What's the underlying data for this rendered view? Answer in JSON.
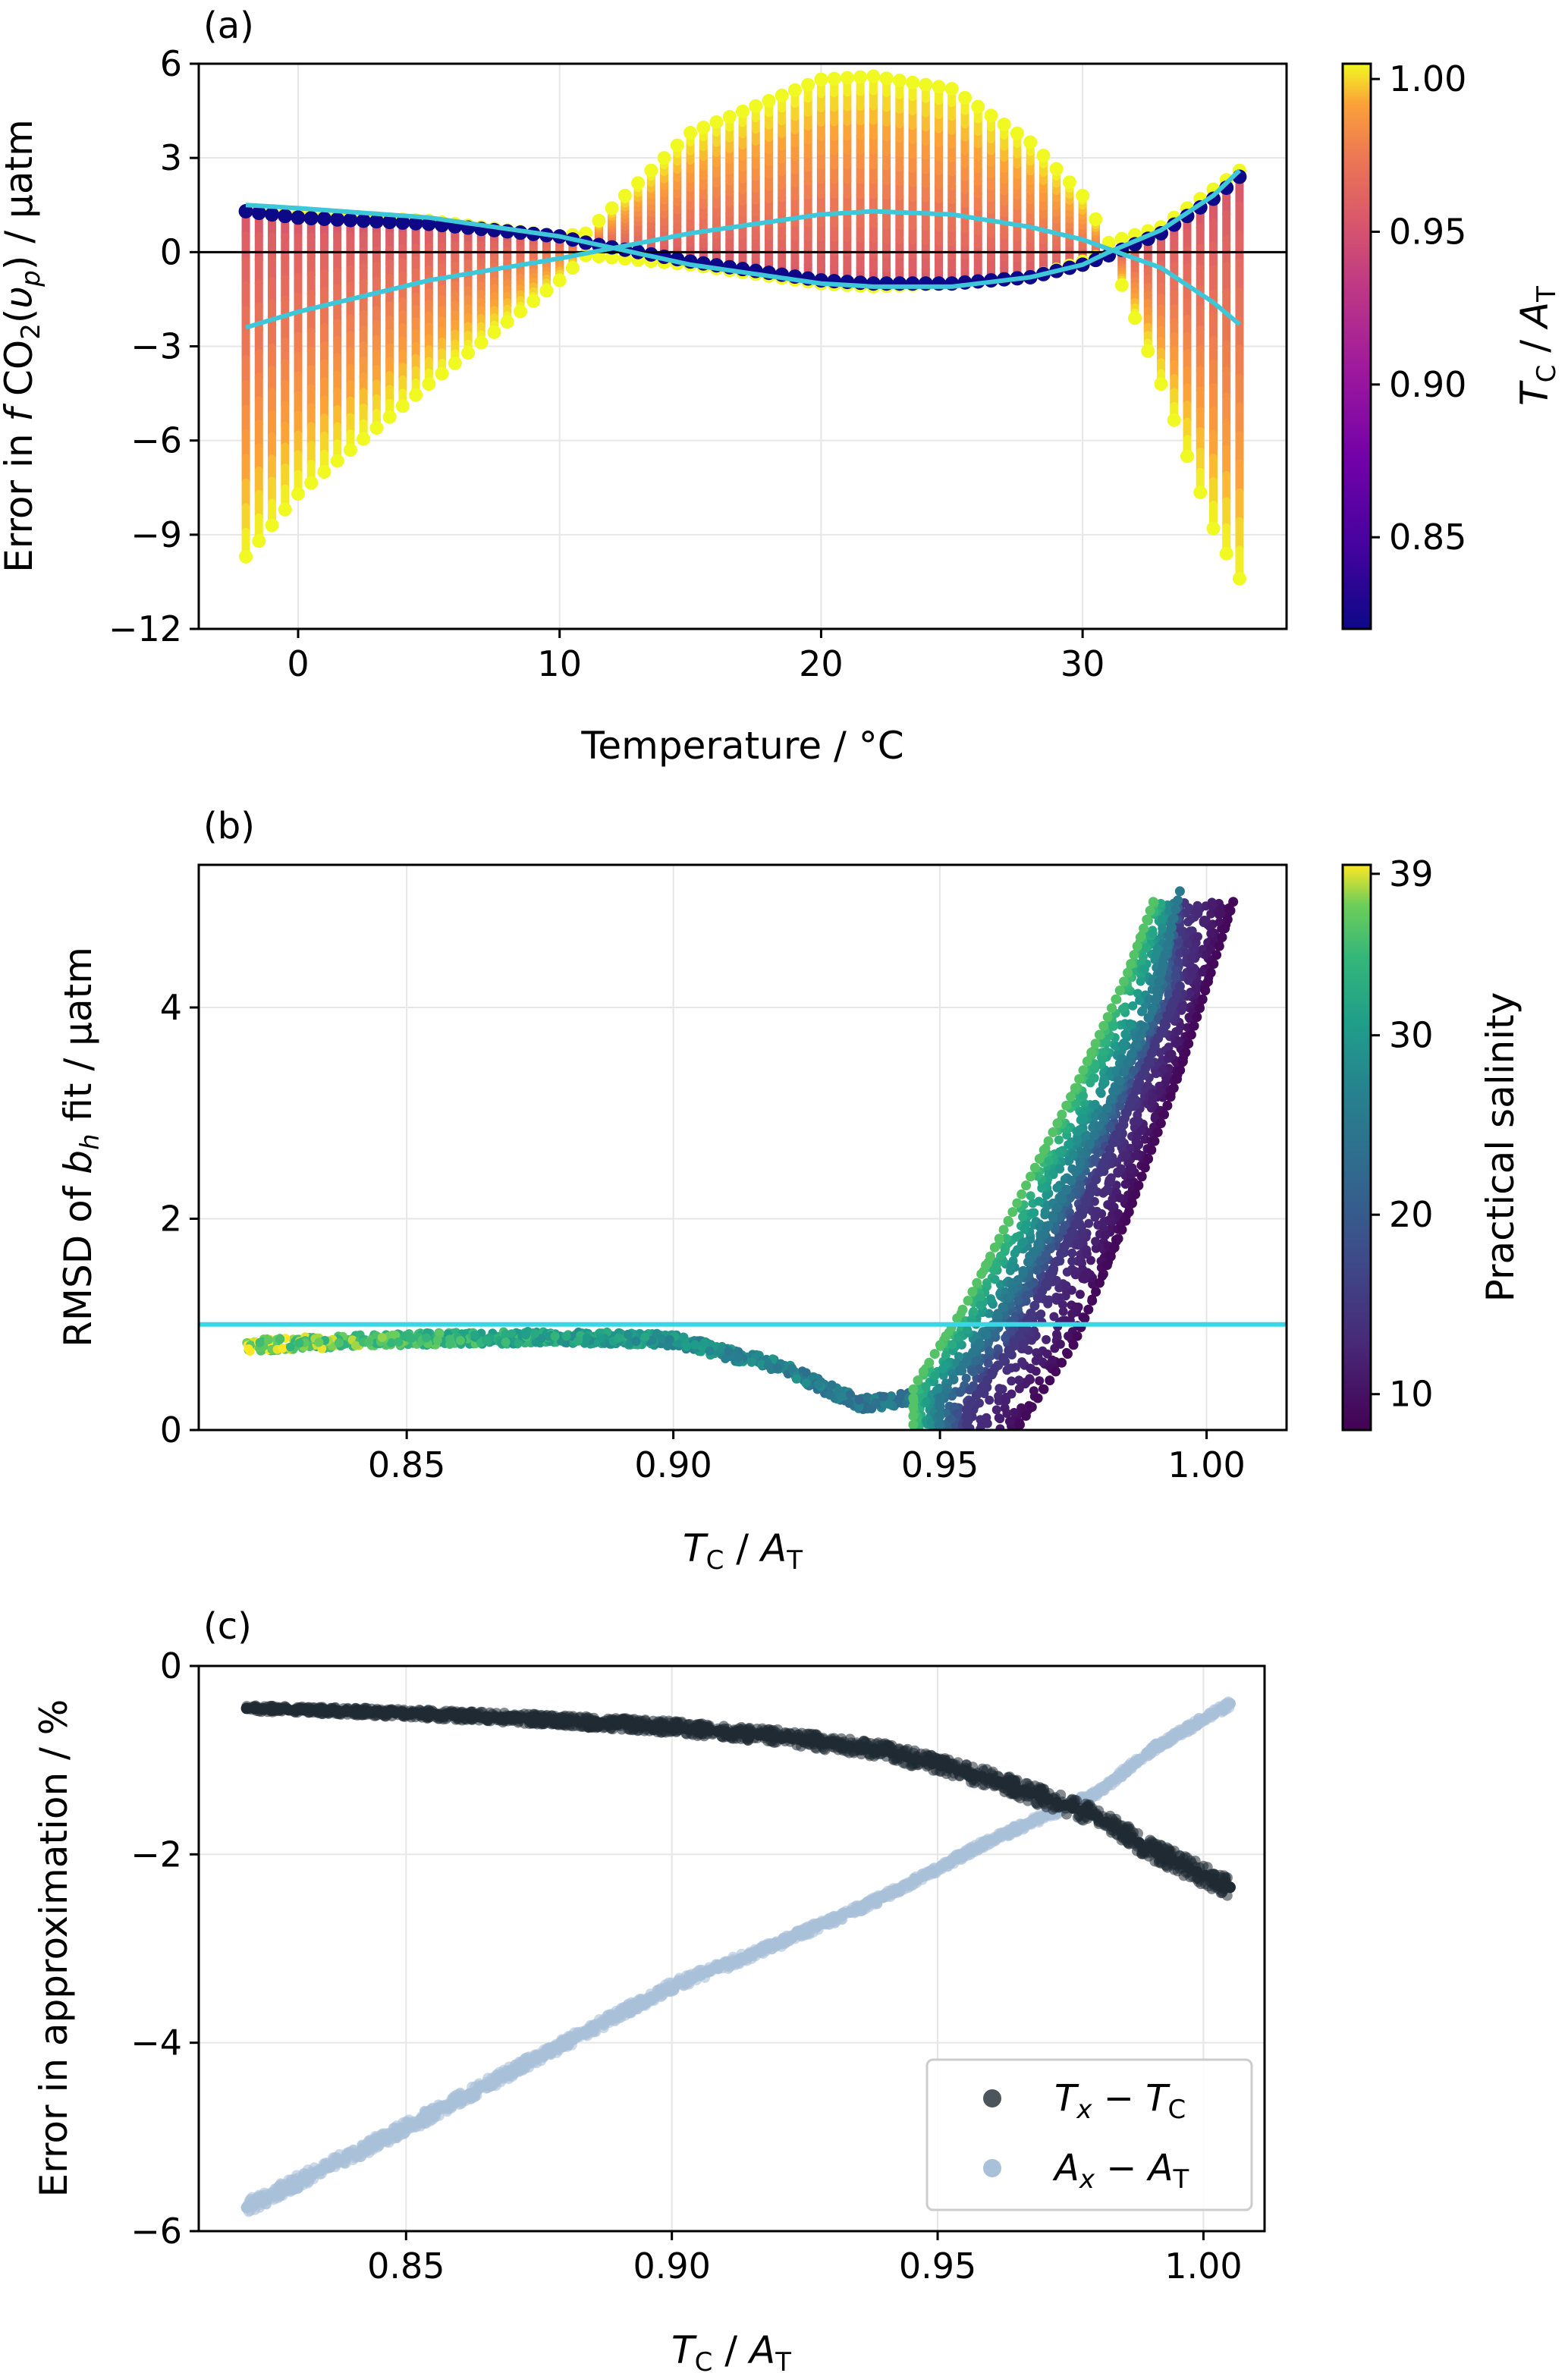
{
  "figure": {
    "panel_a": {
      "label": "(a)",
      "xlabel": "Temperature / °C",
      "ylabel_main": "Error in ",
      "ylabel_f": "f",
      "ylabel_co": " CO",
      "ylabel_sub": "2",
      "ylabel_paren1": "(",
      "ylabel_upsilon": "υ",
      "ylabel_p": "p",
      "ylabel_paren2": ") / µatm",
      "colorbar_label_T": "T",
      "colorbar_label_C": "C",
      "colorbar_label_slash": " / ",
      "colorbar_label_A": "A",
      "colorbar_label_Tsub": "T"
    },
    "panel_b": {
      "label": "(b)",
      "xlabel_T": "T",
      "xlabel_C": "C",
      "xlabel_slash": " / ",
      "xlabel_A": "A",
      "xlabel_Tsub": "T",
      "ylabel_pre": "RMSD of ",
      "ylabel_b": "b",
      "ylabel_h": "h",
      "ylabel_post": " fit / µatm",
      "colorbar_label": "Practical salinity"
    },
    "panel_c": {
      "label": "(c)",
      "xlabel_T": "T",
      "xlabel_C": "C",
      "xlabel_slash": " / ",
      "xlabel_A": "A",
      "xlabel_Tsub": "T",
      "ylabel": "Error in approximation / %",
      "legend": [
        {
          "main": "T",
          "sub": "x",
          "op": " − ",
          "main2": "T",
          "sub2": "C"
        },
        {
          "main": "A",
          "sub": "x",
          "op": " − ",
          "main2": "A",
          "sub2": "T"
        }
      ]
    }
  },
  "chart_data": [
    {
      "type": "scatter",
      "title": "(a)",
      "xlabel": "Temperature / °C",
      "ylabel": "Error in fCO2(υp) / µatm",
      "xlim": [
        -3.8,
        37.8
      ],
      "ylim": [
        -12,
        6
      ],
      "xticks": [
        0,
        10,
        20,
        30
      ],
      "xtick_labels": [
        "0",
        "10",
        "20",
        "30"
      ],
      "yticks": [
        -12,
        -9,
        -6,
        -3,
        0,
        3,
        6
      ],
      "ytick_labels": [
        "−12",
        "−9",
        "−6",
        "−3",
        "0",
        "3",
        "6"
      ],
      "temperature_range": [
        -2,
        36
      ],
      "temperature_step": 0.5,
      "notes": "Vertical strips of points coloured by TC/AT; yellow = 1.00, dark blue = 0.82",
      "strip_envelope": {
        "x": [
          -2,
          0,
          5,
          10,
          11,
          15,
          20,
          22,
          25,
          28,
          30,
          31,
          33,
          35,
          36
        ],
        "upper": [
          1.3,
          1.2,
          1.0,
          0.5,
          0.6,
          3.8,
          5.5,
          5.6,
          5.2,
          3.5,
          1.8,
          0.3,
          0.8,
          2.0,
          2.6
        ],
        "lower": [
          -9.7,
          -7.7,
          -4.2,
          -0.9,
          -0.1,
          -0.4,
          -1.0,
          -1.1,
          -1.0,
          -0.8,
          -0.3,
          0.0,
          -4.2,
          -8.8,
          -10.4
        ]
      },
      "dark_dots": {
        "x": [
          -2,
          0,
          5,
          10,
          11,
          15,
          20,
          22,
          25,
          28,
          30,
          31,
          33,
          35,
          36
        ],
        "y": [
          1.3,
          1.1,
          0.9,
          0.5,
          0.3,
          -0.3,
          -0.9,
          -1.0,
          -1.0,
          -0.8,
          -0.4,
          -0.1,
          0.6,
          1.7,
          2.4
        ]
      },
      "reference_lines": [
        {
          "name": "upper-fit",
          "x": [
            -2,
            0,
            5,
            10,
            15,
            20,
            22,
            25,
            28,
            30,
            31,
            33,
            35,
            36
          ],
          "y": [
            1.5,
            1.4,
            1.1,
            0.5,
            -0.4,
            -1.0,
            -1.1,
            -1.1,
            -0.8,
            -0.4,
            0.0,
            0.7,
            1.8,
            2.6
          ]
        },
        {
          "name": "lower-fit",
          "x": [
            -2,
            0,
            5,
            10,
            15,
            20,
            22,
            25,
            28,
            30,
            31,
            33,
            35,
            36
          ],
          "y": [
            -2.4,
            -1.9,
            -0.9,
            -0.2,
            0.6,
            1.2,
            1.3,
            1.2,
            0.8,
            0.4,
            0.1,
            -0.5,
            -1.6,
            -2.3
          ]
        }
      ],
      "colorbar": {
        "label": "TC / AT",
        "range": [
          0.82,
          1.005
        ],
        "ticks": [
          0.85,
          0.9,
          0.95,
          1.0
        ],
        "tick_labels": [
          "0.85",
          "0.90",
          "0.95",
          "1.00"
        ],
        "colormap": "plasma"
      }
    },
    {
      "type": "scatter",
      "title": "(b)",
      "xlabel": "TC / AT",
      "ylabel": "RMSD of bh fit / µatm",
      "xlim": [
        0.811,
        1.015
      ],
      "ylim": [
        0,
        5.35
      ],
      "xticks": [
        0.85,
        0.9,
        0.95,
        1.0
      ],
      "xtick_labels": [
        "0.85",
        "0.90",
        "0.95",
        "1.00"
      ],
      "yticks": [
        0,
        2,
        4
      ],
      "ytick_labels": [
        "0",
        "2",
        "4"
      ],
      "threshold_line": 1.0,
      "baseline_points": {
        "x": [
          0.82,
          0.85,
          0.88,
          0.9,
          0.92,
          0.935,
          0.945
        ],
        "y": [
          0.8,
          0.86,
          0.88,
          0.85,
          0.6,
          0.25,
          0.3
        ]
      },
      "rising_branches": [
        {
          "salinity": 36,
          "x": [
            0.945,
            0.955,
            0.965,
            0.975,
            0.985,
            0.99
          ],
          "y": [
            0.4,
            1.2,
            2.2,
            3.2,
            4.3,
            5.0
          ]
        },
        {
          "salinity": 25,
          "x": [
            0.95,
            0.96,
            0.97,
            0.98,
            0.99,
            0.995
          ],
          "y": [
            0.3,
            1.0,
            1.9,
            2.9,
            4.0,
            5.1
          ]
        },
        {
          "salinity": 15,
          "x": [
            0.955,
            0.965,
            0.975,
            0.985,
            0.995
          ],
          "y": [
            0.2,
            0.9,
            1.9,
            3.0,
            4.2
          ]
        },
        {
          "salinity": 9,
          "x": [
            0.965,
            0.975,
            0.985,
            0.995,
            1.005
          ],
          "y": [
            0.05,
            0.8,
            2.0,
            3.4,
            5.0
          ]
        }
      ],
      "colorbar": {
        "label": "Practical salinity",
        "range": [
          8,
          39.5
        ],
        "ticks": [
          10,
          20,
          30,
          39
        ],
        "tick_labels": [
          "10",
          "20",
          "30",
          "39"
        ],
        "colormap": "viridis"
      }
    },
    {
      "type": "scatter",
      "title": "(c)",
      "xlabel": "TC / AT",
      "ylabel": "Error in approximation / %",
      "xlim": [
        0.811,
        1.0115
      ],
      "ylim": [
        -6,
        0
      ],
      "xticks": [
        0.85,
        0.9,
        0.95,
        1.0
      ],
      "xtick_labels": [
        "0.85",
        "0.90",
        "0.95",
        "1.00"
      ],
      "yticks": [
        -6,
        -4,
        -2,
        0
      ],
      "ytick_labels": [
        "−6",
        "−4",
        "−2",
        "0"
      ],
      "series": [
        {
          "name": "Tx − TC",
          "color": "#1f2a33",
          "x": [
            0.82,
            0.85,
            0.88,
            0.9,
            0.92,
            0.94,
            0.96,
            0.98,
            0.99,
            1.005
          ],
          "y": [
            -0.45,
            -0.5,
            -0.58,
            -0.65,
            -0.75,
            -0.9,
            -1.2,
            -1.6,
            -1.95,
            -2.35
          ]
        },
        {
          "name": "Ax − AT",
          "color": "#a9c0d9",
          "x": [
            0.82,
            0.85,
            0.88,
            0.9,
            0.92,
            0.94,
            0.96,
            0.98,
            0.99,
            1.005
          ],
          "y": [
            -5.75,
            -4.9,
            -4.0,
            -3.4,
            -2.95,
            -2.45,
            -1.85,
            -1.35,
            -0.9,
            -0.4
          ]
        }
      ],
      "legend_position": "lower-right"
    }
  ]
}
